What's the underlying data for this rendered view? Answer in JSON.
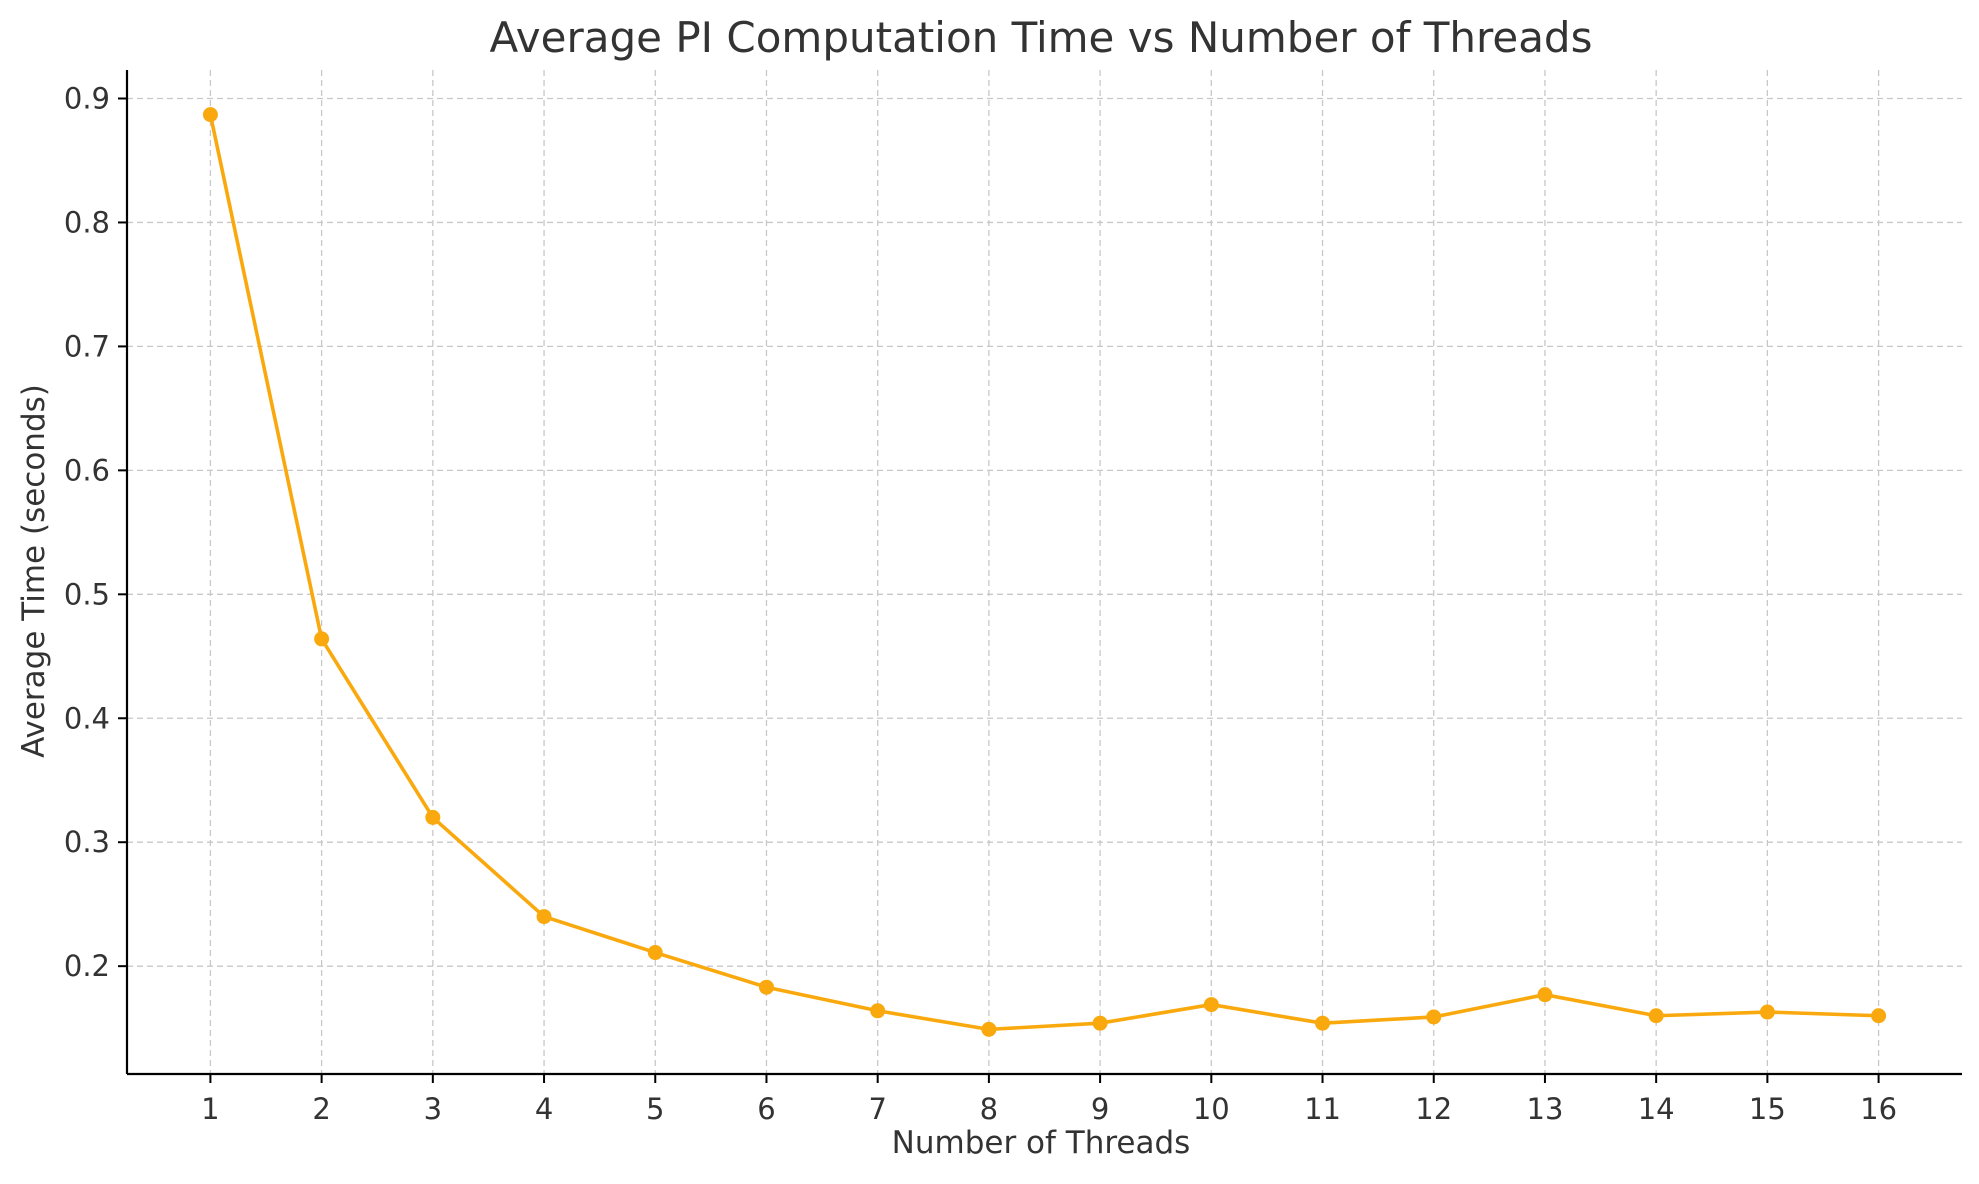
{
  "chart_data": {
    "type": "line",
    "title": "Average PI Computation Time vs Number of Threads",
    "xlabel": "Number of Threads",
    "ylabel": "Average Time (seconds)",
    "x": [
      1,
      2,
      3,
      4,
      5,
      6,
      7,
      8,
      9,
      10,
      11,
      12,
      13,
      14,
      15,
      16
    ],
    "x_tick_labels": [
      "1",
      "2",
      "3",
      "4",
      "5",
      "6",
      "7",
      "8",
      "9",
      "10",
      "11",
      "12",
      "13",
      "14",
      "15",
      "16"
    ],
    "series": [
      {
        "values": [
          0.887,
          0.464,
          0.32,
          0.24,
          0.211,
          0.183,
          0.164,
          0.149,
          0.154,
          0.169,
          0.154,
          0.159,
          0.177,
          0.16,
          0.163,
          0.16
        ],
        "color": "#f9a90e",
        "marker": "circle"
      }
    ],
    "y_ticks": [
      0.2,
      0.3,
      0.4,
      0.5,
      0.6,
      0.7,
      0.8,
      0.9
    ],
    "y_tick_labels": [
      "0.2",
      "0.3",
      "0.4",
      "0.5",
      "0.6",
      "0.7",
      "0.8",
      "0.9"
    ],
    "xlim": [
      0.25,
      16.75
    ],
    "ylim": [
      0.113,
      0.923
    ],
    "grid": true,
    "legend": false
  }
}
